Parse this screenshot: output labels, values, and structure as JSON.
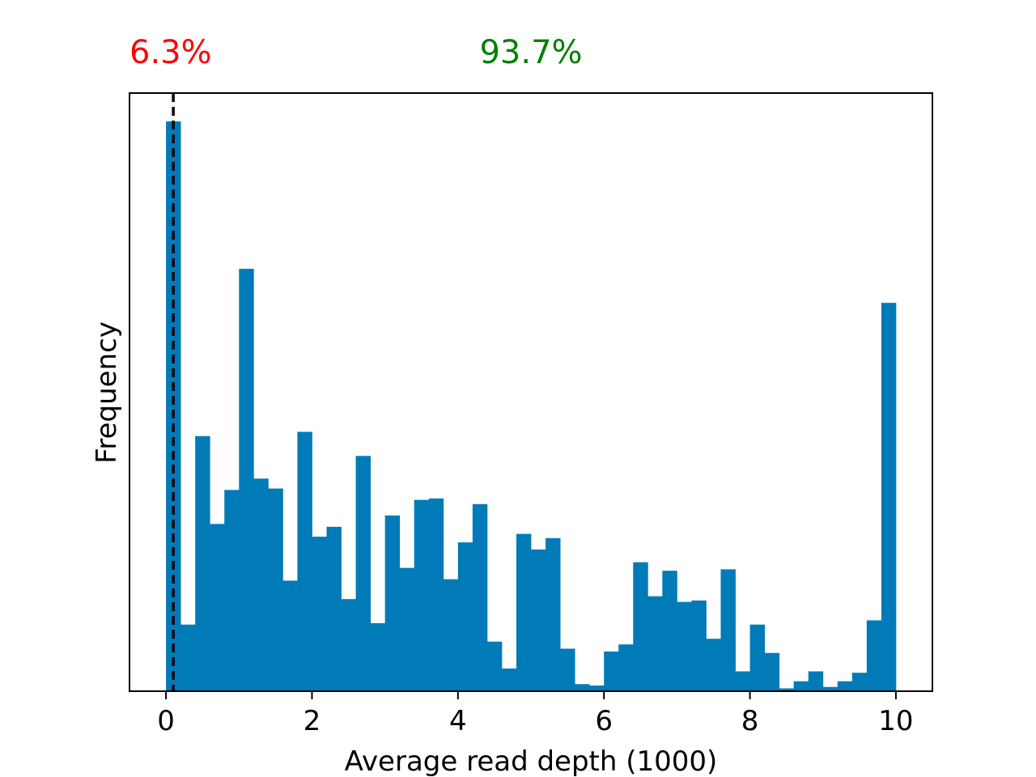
{
  "chart_data": {
    "type": "bar",
    "xlabel": "Average read depth (1000)",
    "ylabel": "Frequency",
    "xlim": [
      -0.5,
      10.5
    ],
    "ylim": [
      0,
      4.22
    ],
    "xticks": [
      {
        "value": 0,
        "label": "0"
      },
      {
        "value": 2,
        "label": "2"
      },
      {
        "value": 4,
        "label": "4"
      },
      {
        "value": 6,
        "label": "6"
      },
      {
        "value": 8,
        "label": "8"
      },
      {
        "value": 10,
        "label": "10"
      }
    ],
    "bin_width": 0.2,
    "bin_start": 0.0,
    "values": [
      4.02,
      0.47,
      1.8,
      1.18,
      1.42,
      2.98,
      1.5,
      1.43,
      0.78,
      1.83,
      1.09,
      1.16,
      0.65,
      1.66,
      0.48,
      1.24,
      0.87,
      1.35,
      1.36,
      0.79,
      1.05,
      1.32,
      0.35,
      0.16,
      1.11,
      1.0,
      1.08,
      0.3,
      0.05,
      0.04,
      0.28,
      0.33,
      0.91,
      0.67,
      0.85,
      0.63,
      0.64,
      0.37,
      0.86,
      0.14,
      0.47,
      0.27,
      0.02,
      0.07,
      0.14,
      0.03,
      0.07,
      0.13,
      0.5,
      2.74
    ],
    "threshold": 0.1,
    "annotations": {
      "below_threshold": {
        "text": "6.3%",
        "color": "#ff0000"
      },
      "above_threshold": {
        "text": "93.7%",
        "color": "#008000"
      }
    },
    "bar_color": "#007bb8",
    "grid": false,
    "legend": "none"
  }
}
